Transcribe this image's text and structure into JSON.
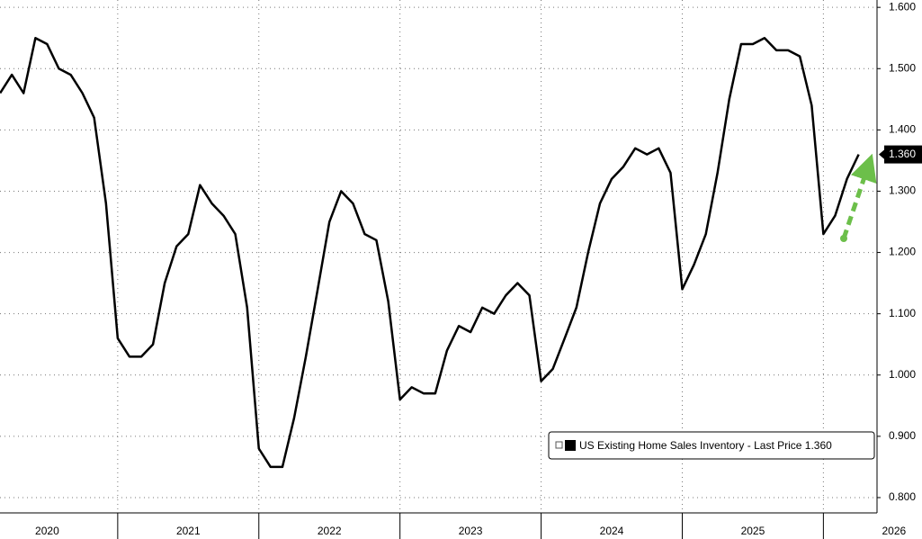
{
  "chart_data": {
    "type": "line",
    "x": [
      2020.167,
      2020.25,
      2020.333,
      2020.417,
      2020.5,
      2020.583,
      2020.667,
      2020.75,
      2020.833,
      2020.917,
      2021,
      2021.083,
      2021.167,
      2021.25,
      2021.333,
      2021.417,
      2021.5,
      2021.583,
      2021.667,
      2021.75,
      2021.833,
      2021.917,
      2022,
      2022.083,
      2022.167,
      2022.25,
      2022.333,
      2022.417,
      2022.5,
      2022.583,
      2022.667,
      2022.75,
      2022.833,
      2022.917,
      2023,
      2023.083,
      2023.167,
      2023.25,
      2023.333,
      2023.417,
      2023.5,
      2023.583,
      2023.667,
      2023.75,
      2023.833,
      2023.917,
      2024,
      2024.083,
      2024.167,
      2024.25,
      2024.333,
      2024.417,
      2024.5,
      2024.583,
      2024.667,
      2024.75,
      2024.833,
      2024.917,
      2025,
      2025.083,
      2025.167,
      2025.25,
      2025.333,
      2025.417,
      2025.5,
      2025.583,
      2025.667,
      2025.75,
      2025.833,
      2025.917,
      2026,
      2026.083,
      2026.167,
      2026.25
    ],
    "series": [
      {
        "name": "US Existing Home Sales Inventory",
        "color": "#000000",
        "values": [
          1.46,
          1.49,
          1.46,
          1.55,
          1.54,
          1.5,
          1.49,
          1.46,
          1.42,
          1.28,
          1.06,
          1.03,
          1.03,
          1.05,
          1.15,
          1.21,
          1.23,
          1.31,
          1.28,
          1.26,
          1.23,
          1.11,
          0.88,
          0.85,
          0.85,
          0.93,
          1.03,
          1.14,
          1.25,
          1.3,
          1.28,
          1.23,
          1.22,
          1.12,
          0.96,
          0.98,
          0.97,
          0.97,
          1.04,
          1.08,
          1.07,
          1.11,
          1.1,
          1.13,
          1.15,
          1.13,
          0.99,
          1.01,
          1.06,
          1.11,
          1.2,
          1.28,
          1.32,
          1.34,
          1.37,
          1.36,
          1.37,
          1.33,
          1.14,
          1.18,
          1.23,
          1.33,
          1.45,
          1.54,
          1.54,
          1.55,
          1.53,
          1.53,
          1.52,
          1.44,
          1.23,
          1.26,
          1.32,
          1.36
        ],
        "last_label": "Last Price",
        "last_value_label": "1.360"
      }
    ],
    "xlim": [
      2020.166,
      2026.38
    ],
    "xticks": [
      {
        "value": 2020.5,
        "label": "2020"
      },
      {
        "value": 2021.5,
        "label": "2021"
      },
      {
        "value": 2022.5,
        "label": "2022"
      },
      {
        "value": 2023.5,
        "label": "2023"
      },
      {
        "value": 2024.5,
        "label": "2024"
      },
      {
        "value": 2025.5,
        "label": "2025"
      },
      {
        "value": 2026.5,
        "label": "2026"
      }
    ],
    "ylim": [
      0.775,
      1.612
    ],
    "yticks": [
      {
        "value": 0.8,
        "label": "0.800"
      },
      {
        "value": 0.9,
        "label": "0.900"
      },
      {
        "value": 1.0,
        "label": "1.000"
      },
      {
        "value": 1.1,
        "label": "1.100"
      },
      {
        "value": 1.2,
        "label": "1.200"
      },
      {
        "value": 1.3,
        "label": "1.300"
      },
      {
        "value": 1.4,
        "label": "1.400"
      },
      {
        "value": 1.5,
        "label": "1.500"
      },
      {
        "value": 1.6,
        "label": "1.600"
      }
    ],
    "grid": true,
    "legend": "lower right"
  }
}
